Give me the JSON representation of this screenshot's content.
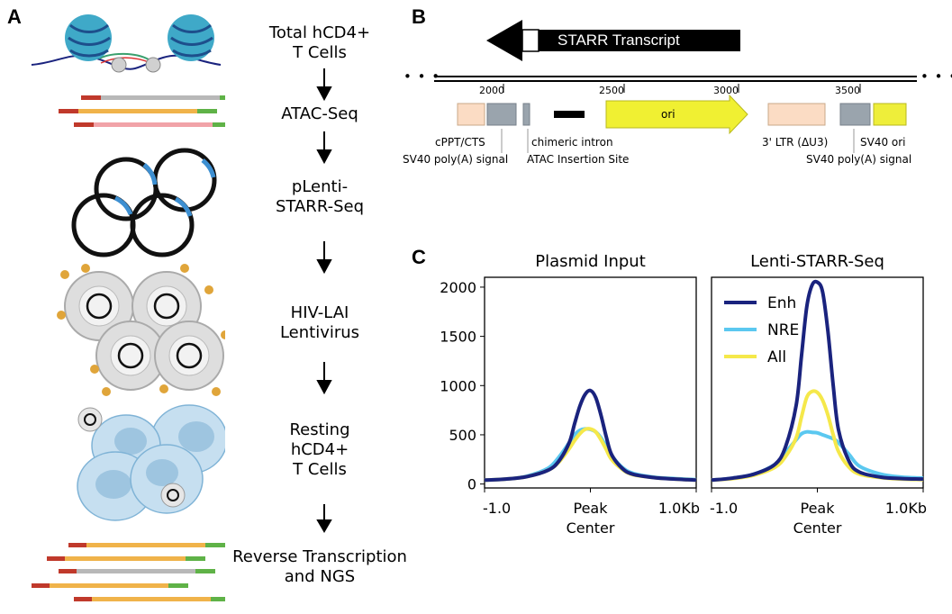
{
  "panels": {
    "a": "A",
    "b": "B",
    "c": "C"
  },
  "workflow": {
    "steps": [
      [
        "Total hCD4+",
        "T Cells"
      ],
      [
        "ATAC-Seq"
      ],
      [
        "pLenti-",
        "STARR-Seq"
      ],
      [
        "HIV-LAI",
        "Lentivirus"
      ],
      [
        "Resting",
        "hCD4+",
        "T Cells"
      ],
      [
        "Reverse Transcription",
        "and NGS"
      ]
    ]
  },
  "plasmid_map": {
    "transcript_label": "STARR Transcript",
    "ellipsis": "• • •",
    "positions": [
      "2000",
      "2500",
      "3000",
      "3500"
    ],
    "features": {
      "ori": "ori",
      "cppt": "cPPT/CTS",
      "sv40_polya_left": "SV40 poly(A) signal",
      "chimeric_intron": "chimeric intron",
      "atac_site": "ATAC Insertion Site",
      "ltr": "3' LTR (ΔU3)",
      "sv40_ori": "SV40 ori",
      "sv40_polya_right": "SV40 poly(A) signal"
    },
    "colors": {
      "peach": "#fbdcc4",
      "gray": "#9aa4ad",
      "ori": "#f0f032",
      "sv40_ori": "#eeee3a",
      "black": "#000000"
    }
  },
  "chart_data": [
    {
      "type": "line",
      "title": "Plasmid Input",
      "x": [
        -1.0,
        -0.8,
        -0.6,
        -0.4,
        -0.3,
        -0.2,
        -0.15,
        -0.1,
        -0.05,
        0.0,
        0.05,
        0.1,
        0.15,
        0.2,
        0.3,
        0.4,
        0.6,
        0.8,
        1.0
      ],
      "xticks": [
        "-1.0",
        "Peak\nCenter",
        "1.0Kb"
      ],
      "ylim": [
        -40,
        2100
      ],
      "yticks": [
        "0",
        "500",
        "1000",
        "1500",
        "2000"
      ],
      "series": [
        {
          "name": "Enh",
          "color": "#1a237e",
          "values": [
            40,
            50,
            75,
            140,
            230,
            420,
            610,
            790,
            910,
            950,
            880,
            700,
            480,
            300,
            160,
            100,
            65,
            50,
            40
          ]
        },
        {
          "name": "NRE",
          "color": "#5bc8f0",
          "values": [
            40,
            50,
            80,
            160,
            270,
            420,
            500,
            545,
            560,
            555,
            530,
            470,
            380,
            290,
            170,
            110,
            70,
            55,
            45
          ]
        },
        {
          "name": "All",
          "color": "#f5e84a",
          "values": [
            40,
            50,
            75,
            140,
            220,
            360,
            440,
            510,
            555,
            560,
            530,
            450,
            350,
            250,
            150,
            95,
            65,
            50,
            40
          ]
        }
      ]
    },
    {
      "type": "line",
      "title": "Lenti-STARR-Seq",
      "x": [
        -1.0,
        -0.8,
        -0.6,
        -0.4,
        -0.3,
        -0.2,
        -0.15,
        -0.1,
        -0.05,
        0.0,
        0.05,
        0.1,
        0.15,
        0.2,
        0.3,
        0.4,
        0.6,
        0.8,
        1.0
      ],
      "xticks": [
        "-1.0",
        "Peak\nCenter",
        "1.0Kb"
      ],
      "ylim": [
        -40,
        2100
      ],
      "series": [
        {
          "name": "Enh",
          "color": "#1a237e",
          "values": [
            40,
            60,
            100,
            200,
            380,
            800,
            1300,
            1800,
            2020,
            2050,
            1950,
            1550,
            1000,
            550,
            230,
            120,
            70,
            55,
            50
          ]
        },
        {
          "name": "NRE",
          "color": "#5bc8f0",
          "values": [
            40,
            60,
            100,
            200,
            320,
            450,
            510,
            530,
            525,
            520,
            500,
            480,
            460,
            420,
            300,
            180,
            100,
            70,
            60
          ]
        },
        {
          "name": "All",
          "color": "#f5e84a",
          "values": [
            40,
            55,
            90,
            170,
            280,
            470,
            680,
            880,
            940,
            930,
            850,
            700,
            500,
            330,
            170,
            100,
            65,
            50,
            45
          ]
        }
      ],
      "legend": {
        "position": "top-left",
        "entries": [
          "Enh",
          "NRE",
          "All"
        ]
      }
    }
  ]
}
